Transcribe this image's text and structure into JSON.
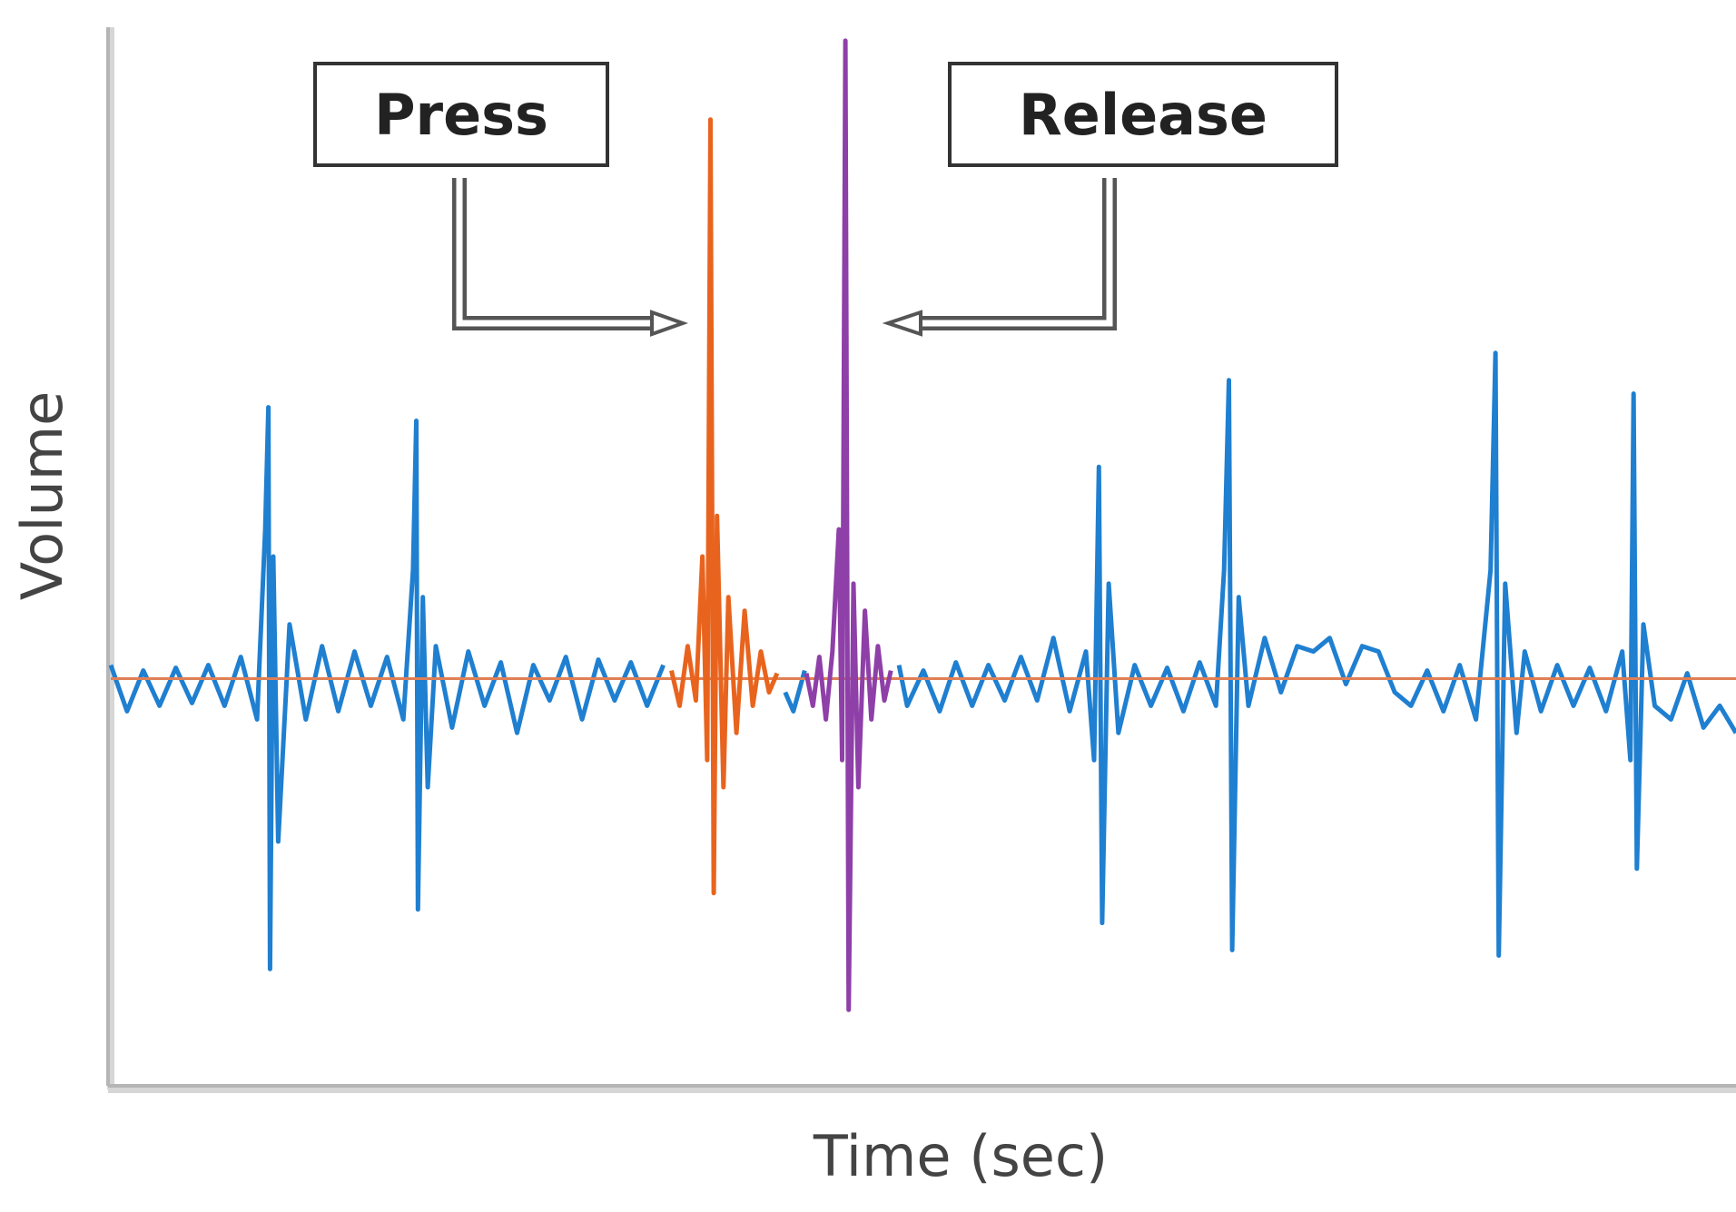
{
  "chart_data": {
    "type": "line",
    "xlabel": "Time (sec)",
    "ylabel": "Volume",
    "xlim": [
      0,
      100
    ],
    "ylim": [
      -1.5,
      2.4
    ],
    "annotations": [
      "Press",
      "Release"
    ],
    "series": [
      {
        "color": "#1f7fd0",
        "x": [
          0,
          1,
          2,
          3,
          4,
          5,
          6,
          7,
          8,
          9,
          9.5,
          9.7,
          9.8,
          10,
          10.3,
          11,
          12,
          13,
          14,
          15,
          16,
          17,
          18,
          18.6,
          18.8,
          18.9,
          19.2,
          19.5,
          20,
          21,
          22,
          23,
          24,
          25,
          26,
          27,
          28,
          29,
          30,
          31,
          32,
          33,
          34,
          35,
          41.5,
          42,
          42.7,
          43,
          48.5,
          49,
          50,
          51,
          52,
          53,
          54,
          55,
          56,
          57,
          58,
          59,
          60,
          60.5,
          60.8,
          61,
          61.4,
          62,
          63,
          64,
          65,
          66,
          67,
          68,
          68.5,
          68.8,
          69,
          69.4,
          70,
          71,
          72,
          73,
          74,
          75,
          76,
          77,
          78,
          79,
          80,
          81,
          82,
          83,
          84,
          84.9,
          85.2,
          85.4,
          85.8,
          86.5,
          87,
          88,
          89,
          90,
          91,
          92,
          93,
          93.5,
          93.7,
          93.9,
          94.3,
          95,
          96,
          97,
          98,
          99,
          100
        ],
        "values": [
          0.05,
          -0.12,
          0.03,
          -0.1,
          0.04,
          -0.09,
          0.05,
          -0.1,
          0.08,
          -0.15,
          0.55,
          1.0,
          -1.07,
          0.45,
          -0.6,
          0.2,
          -0.15,
          0.12,
          -0.12,
          0.1,
          -0.1,
          0.08,
          -0.15,
          0.4,
          0.95,
          -0.85,
          0.3,
          -0.4,
          0.12,
          -0.18,
          0.1,
          -0.1,
          0.06,
          -0.2,
          0.05,
          -0.08,
          0.08,
          -0.15,
          0.07,
          -0.08,
          0.06,
          -0.1,
          0.05,
          null,
          -0.05,
          -0.12,
          0.03,
          null,
          0.05,
          -0.1,
          0.03,
          -0.12,
          0.06,
          -0.1,
          0.05,
          -0.08,
          0.08,
          -0.08,
          0.15,
          -0.12,
          0.1,
          -0.3,
          0.78,
          -0.9,
          0.35,
          -0.2,
          0.05,
          -0.1,
          0.04,
          -0.12,
          0.06,
          -0.1,
          0.4,
          1.1,
          -1.0,
          0.3,
          -0.1,
          0.15,
          -0.05,
          0.12,
          0.1,
          0.15,
          -0.02,
          0.12,
          0.1,
          -0.05,
          -0.1,
          0.03,
          -0.12,
          0.05,
          -0.15,
          0.4,
          1.2,
          -1.02,
          0.35,
          -0.2,
          0.1,
          -0.12,
          0.05,
          -0.1,
          0.04,
          -0.12,
          0.1,
          -0.3,
          1.05,
          -0.7,
          0.2,
          -0.1,
          -0.15,
          0.02,
          -0.18,
          -0.1,
          -0.2
        ]
      },
      {
        "color": "#e07f55",
        "x": [
          0,
          100
        ],
        "values": [
          0,
          0
        ]
      },
      {
        "color": "#e8641e",
        "x": [
          34.5,
          35,
          35.5,
          36,
          36.4,
          36.7,
          36.9,
          37.1,
          37.3,
          37.7,
          38,
          38.5,
          39,
          39.5,
          40,
          40.5,
          41
        ],
        "values": [
          0.03,
          -0.1,
          0.12,
          -0.08,
          0.45,
          -0.3,
          2.06,
          -0.79,
          0.6,
          -0.4,
          0.3,
          -0.2,
          0.25,
          -0.1,
          0.1,
          -0.05,
          0.02
        ]
      },
      {
        "color": "#8e3fa8",
        "x": [
          42.8,
          43.2,
          43.6,
          44,
          44.4,
          44.8,
          45.0,
          45.2,
          45.4,
          45.7,
          46,
          46.4,
          46.8,
          47.2,
          47.6,
          48
        ],
        "values": [
          0.02,
          -0.1,
          0.08,
          -0.15,
          0.1,
          0.55,
          -0.3,
          2.35,
          -1.22,
          0.35,
          -0.4,
          0.25,
          -0.15,
          0.12,
          -0.08,
          0.03
        ]
      }
    ]
  }
}
